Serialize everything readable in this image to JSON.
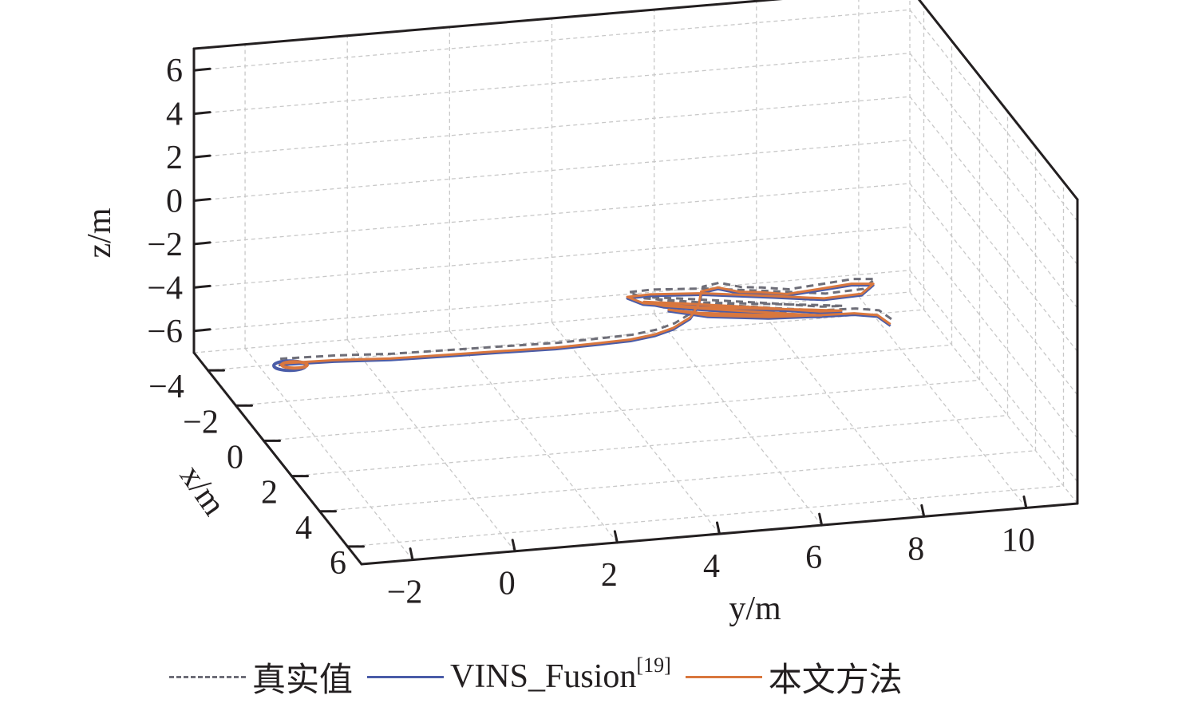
{
  "chart_data": {
    "type": "line",
    "projection": "3d",
    "title": "",
    "xlabel": "x/m",
    "ylabel": "y/m",
    "zlabel": "z/m",
    "xlim": [
      -5,
      7
    ],
    "ylim": [
      -3,
      11
    ],
    "zlim": [
      -7,
      7
    ],
    "xticks": [
      -4,
      -2,
      0,
      2,
      4,
      6
    ],
    "yticks": [
      -2,
      0,
      2,
      4,
      6,
      8,
      10
    ],
    "zticks": [
      -6,
      -4,
      -2,
      0,
      2,
      4,
      6
    ],
    "xtick_labels": [
      "−4",
      "−2",
      "0",
      "2",
      "4",
      "6"
    ],
    "ytick_labels": [
      "−2",
      "0",
      "2",
      "4",
      "6",
      "8",
      "10"
    ],
    "ztick_labels": [
      "−6",
      "−4",
      "−2",
      "0",
      "2",
      "4",
      "6"
    ],
    "grid": true,
    "legend_position": "bottom",
    "series": [
      {
        "name": "真实值",
        "color": "#6e6e78",
        "style": "dashed"
      },
      {
        "name": "VINS_Fusion",
        "name_suffix": "[19]",
        "color": "#4a5ca8",
        "style": "solid"
      },
      {
        "name": "本文方法",
        "color": "#d9773e",
        "style": "solid"
      }
    ],
    "trajectory": [
      [
        -1.5,
        -2.3,
        -4.8
      ],
      [
        -1.2,
        -1.3,
        -4.6
      ],
      [
        -0.8,
        -0.3,
        -4.4
      ],
      [
        -0.4,
        0.7,
        -4.1
      ],
      [
        0.0,
        1.7,
        -3.8
      ],
      [
        0.4,
        2.6,
        -3.5
      ],
      [
        0.7,
        3.4,
        -3.2
      ],
      [
        1.0,
        3.9,
        -2.9
      ],
      [
        1.3,
        4.3,
        -2.5
      ],
      [
        1.5,
        4.6,
        -2.1
      ],
      [
        1.6,
        4.9,
        -1.6
      ],
      [
        1.5,
        5.1,
        -1.1
      ],
      [
        1.3,
        5.2,
        -0.7
      ],
      [
        1.4,
        5.5,
        -0.5
      ],
      [
        1.5,
        5.9,
        -0.7
      ],
      [
        1.5,
        6.3,
        -0.8
      ],
      [
        1.6,
        6.8,
        -0.9
      ],
      [
        1.7,
        7.4,
        -0.7
      ],
      [
        1.8,
        8.0,
        -0.5
      ],
      [
        1.9,
        8.4,
        -0.5
      ],
      [
        1.8,
        8.2,
        -1.0
      ],
      [
        1.3,
        7.6,
        -1.5
      ],
      [
        0.6,
        6.8,
        -1.8
      ],
      [
        -0.1,
        5.6,
        -2.0
      ],
      [
        -0.5,
        4.7,
        -2.2
      ],
      [
        -0.7,
        4.3,
        -2.4
      ],
      [
        -0.3,
        4.5,
        -2.4
      ],
      [
        0.4,
        5.4,
        -2.2
      ],
      [
        1.0,
        6.5,
        -2.0
      ],
      [
        1.5,
        7.3,
        -1.8
      ],
      [
        1.8,
        7.8,
        -1.7
      ],
      [
        1.4,
        7.5,
        -2.0
      ],
      [
        0.6,
        6.6,
        -2.3
      ],
      [
        -0.2,
        5.3,
        -2.5
      ],
      [
        -0.6,
        4.6,
        -2.6
      ],
      [
        -0.3,
        4.9,
        -2.6
      ],
      [
        0.3,
        5.9,
        -2.5
      ],
      [
        1.0,
        6.9,
        -2.3
      ],
      [
        1.5,
        7.5,
        -2.1
      ],
      [
        1.2,
        7.3,
        -2.3
      ],
      [
        0.6,
        6.5,
        -2.6
      ],
      [
        0.0,
        5.5,
        -2.8
      ],
      [
        -0.3,
        5.0,
        -2.8
      ],
      [
        0.3,
        5.6,
        -2.7
      ],
      [
        1.0,
        6.6,
        -2.4
      ],
      [
        1.6,
        7.5,
        -2.0
      ],
      [
        2.0,
        8.0,
        -1.7
      ],
      [
        2.2,
        8.4,
        -1.7
      ],
      [
        2.4,
        8.6,
        -2.0
      ]
    ],
    "start_marker": [
      -1.8,
      -2.0,
      -5.2
    ]
  }
}
